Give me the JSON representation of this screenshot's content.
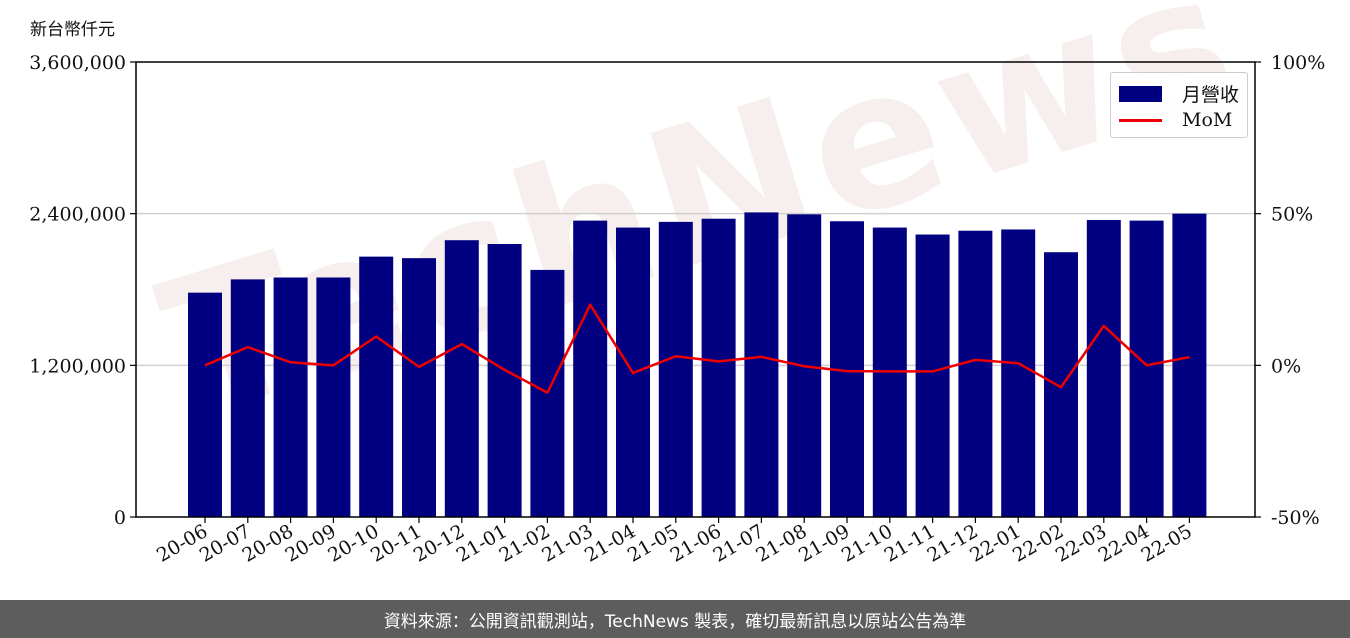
{
  "unit_label": "新台幣仟元",
  "watermark": "TechNews",
  "footer": "資料來源：公開資訊觀測站，TechNews 製表，確切最新訊息以原站公告為準",
  "colors": {
    "bar": "#000080",
    "line": "#ee0000",
    "grid": "#d0d0d0",
    "footer_bg": "#5d5d5d"
  },
  "legend": {
    "position": "top-right",
    "bar_label": "月營收",
    "line_label": "MoM"
  },
  "chart_data": {
    "type": "bar",
    "title": "",
    "xlabel": "",
    "ylabel": "",
    "grid": true,
    "categories": [
      "20-06",
      "20-07",
      "20-08",
      "20-09",
      "20-10",
      "20-11",
      "20-12",
      "21-01",
      "21-02",
      "21-03",
      "21-04",
      "21-05",
      "21-06",
      "21-07",
      "21-08",
      "21-09",
      "21-10",
      "21-11",
      "21-12",
      "22-01",
      "22-02",
      "22-03",
      "22-04",
      "22-05"
    ],
    "series": [
      {
        "name": "月營收",
        "type": "bar",
        "axis": "left",
        "values": [
          1775000,
          1880000,
          1895000,
          1895000,
          2060000,
          2048000,
          2190000,
          2160000,
          1955000,
          2345000,
          2290000,
          2335000,
          2360000,
          2410000,
          2395000,
          2340000,
          2290000,
          2235000,
          2265000,
          2275000,
          2095000,
          2350000,
          2345000,
          2400000
        ]
      },
      {
        "name": "MoM",
        "type": "line",
        "axis": "right",
        "values": [
          0.0,
          6.0,
          1.0,
          0.0,
          9.5,
          -0.5,
          7.0,
          -1.5,
          -9.0,
          20.0,
          -2.5,
          3.0,
          1.3,
          2.8,
          -0.3,
          -1.9,
          -2.0,
          -2.0,
          1.8,
          0.7,
          -7.2,
          13.0,
          0.0,
          2.7
        ]
      }
    ],
    "y_left": {
      "ylim": [
        0,
        3600000
      ],
      "ticks": [
        "0",
        "1,200,000",
        "2,400,000",
        "3,600,000"
      ],
      "tick_values": [
        0,
        1200000,
        2400000,
        3600000
      ]
    },
    "y_right": {
      "ylim": [
        -50,
        100
      ],
      "ticks": [
        "-50%",
        "0%",
        "50%",
        "100%"
      ],
      "tick_values": [
        -50,
        0,
        50,
        100
      ]
    }
  }
}
